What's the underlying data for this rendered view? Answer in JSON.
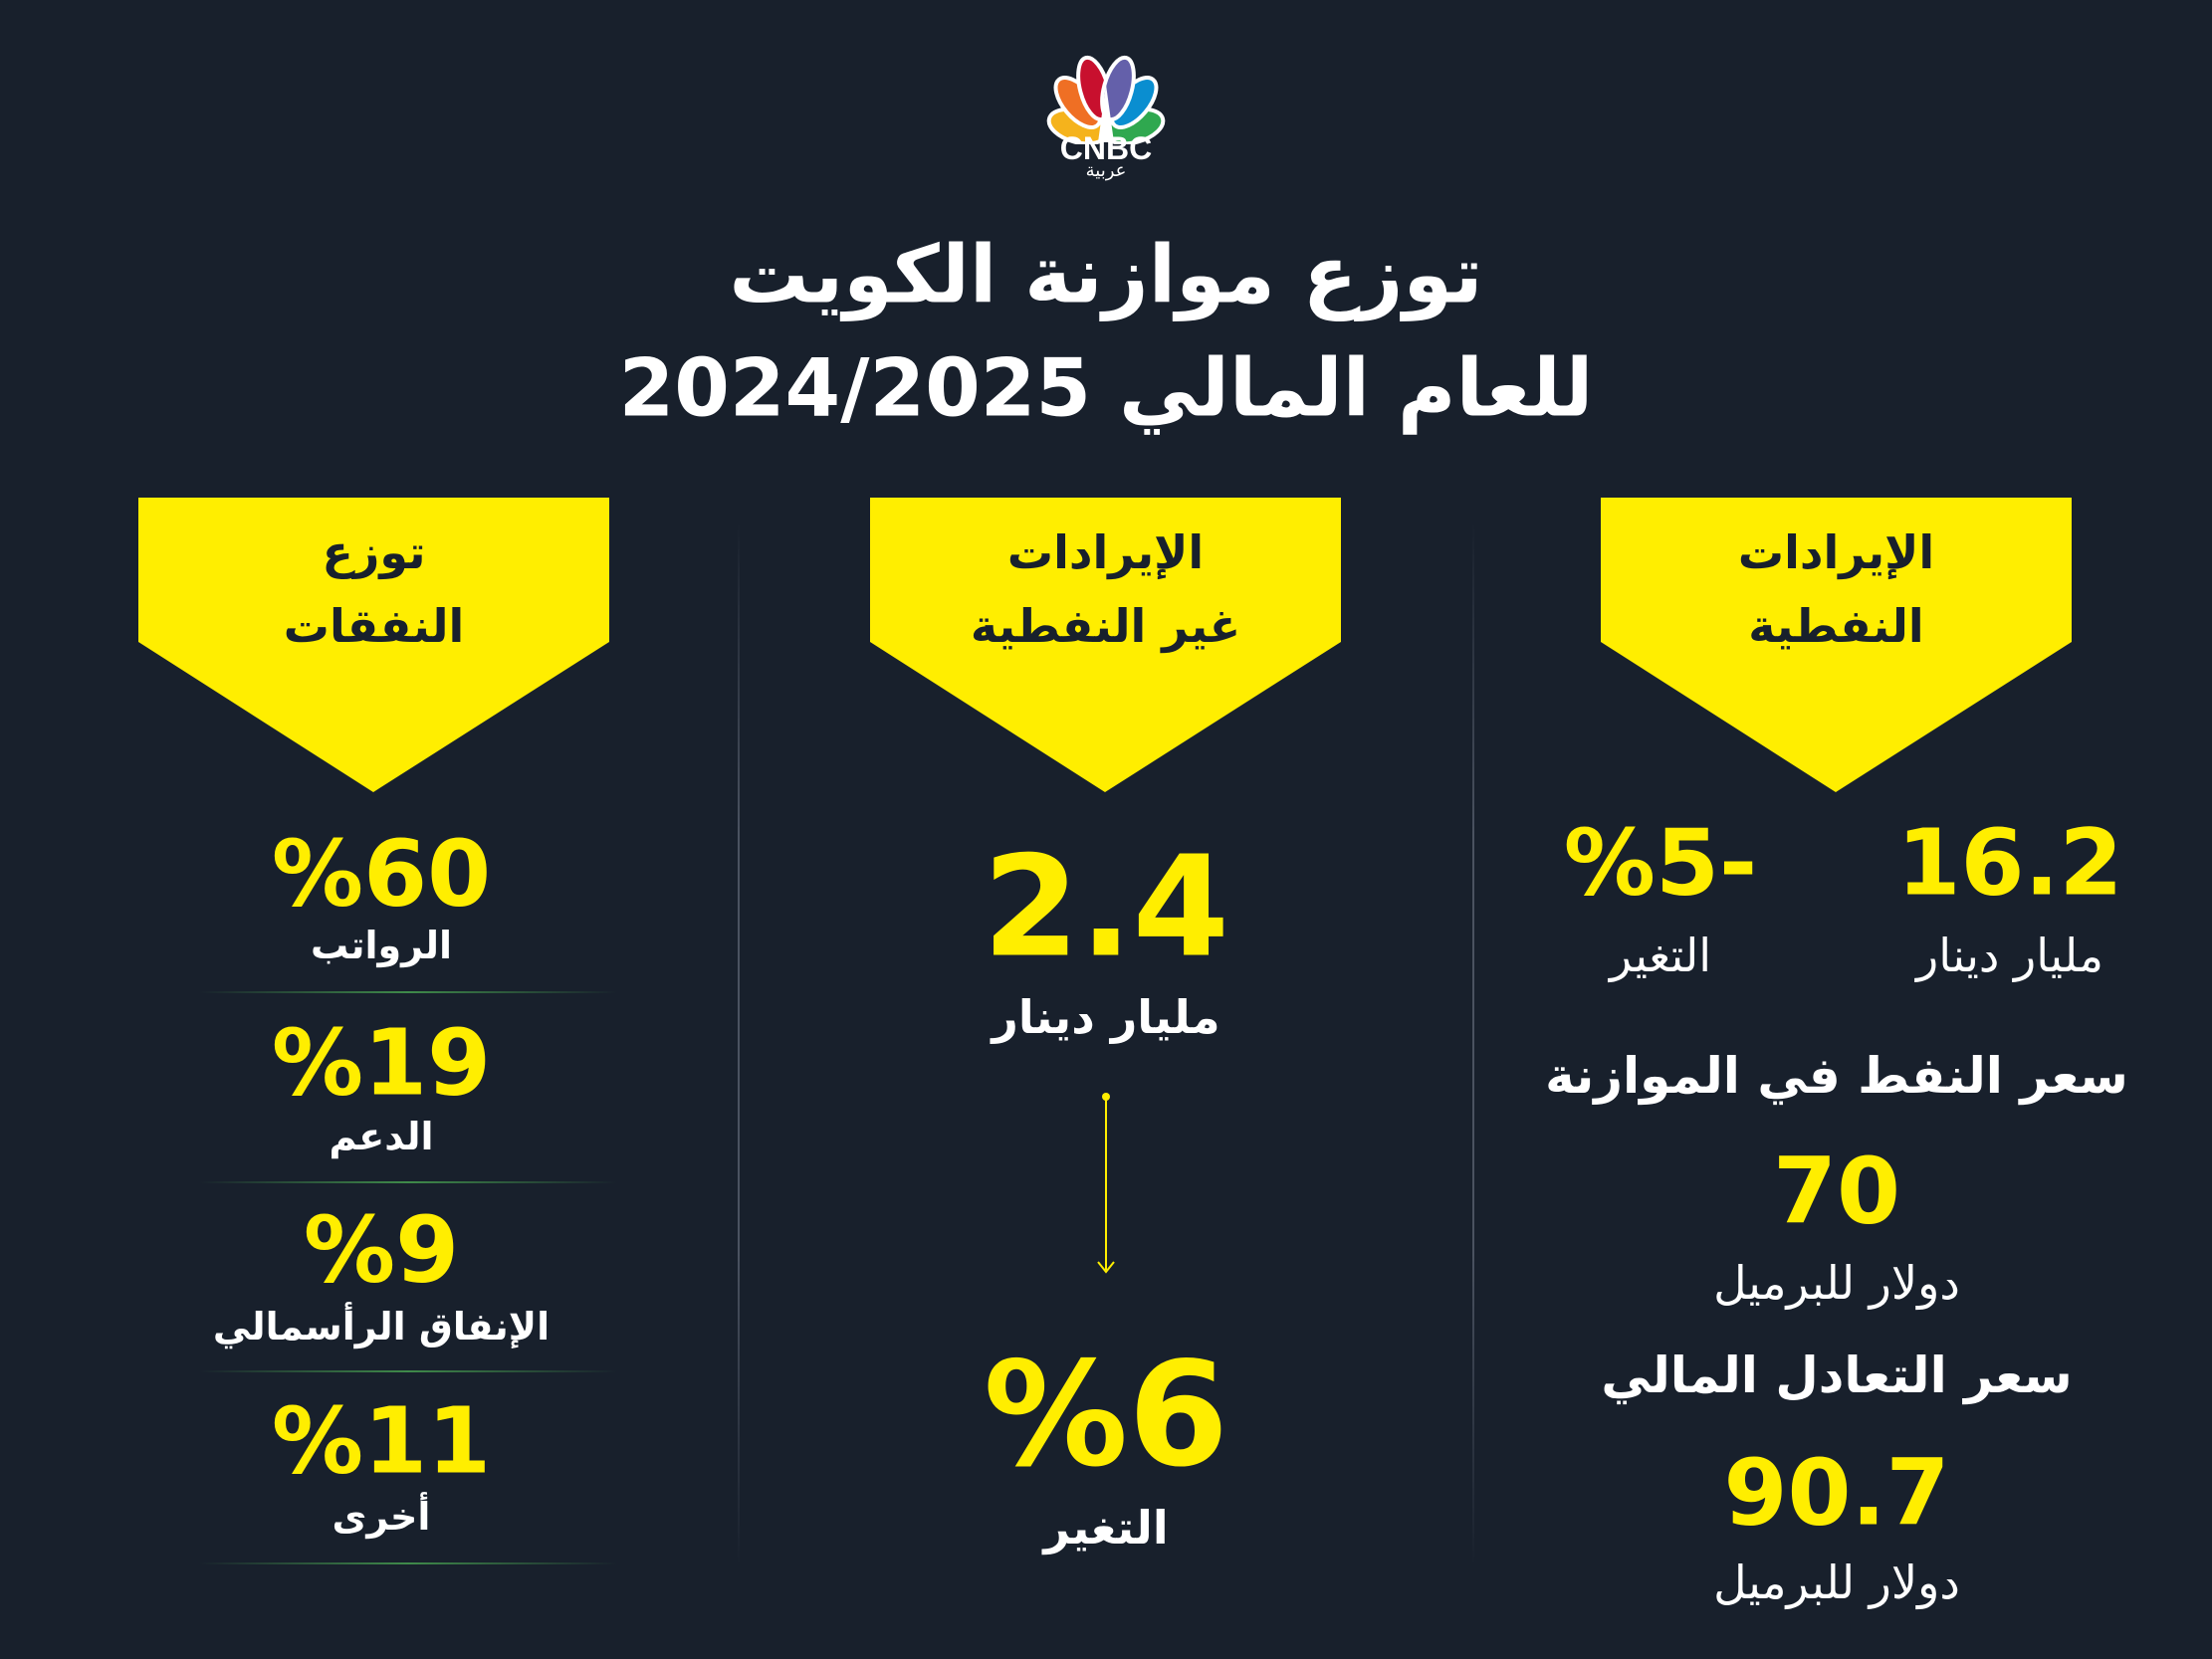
{
  "logo": {
    "text": "CNBC",
    "subtitle": "عربية",
    "colors": [
      "#f5b31c",
      "#ef6f24",
      "#c8102e",
      "#6460aa",
      "#0a8ed0",
      "#2fa84f"
    ]
  },
  "title": {
    "line1": "توزع موازنة الكويت",
    "line2": "للعام المالي 2024/2025"
  },
  "colors": {
    "background": "#18202c",
    "accent": "#ffee00"
  },
  "columns": {
    "expenses": {
      "banner": [
        "توزع",
        "النفقات"
      ],
      "items": [
        {
          "value": "%60",
          "label": "الرواتب"
        },
        {
          "value": "%19",
          "label": "الدعم"
        },
        {
          "value": "%9",
          "label": "الإنفاق الرأسمالي"
        },
        {
          "value": "%11",
          "label": "أخرى"
        }
      ]
    },
    "non_oil": {
      "banner": [
        "الإيرادات",
        "غير النفطية"
      ],
      "value": "2.4",
      "unit": "مليار دينار",
      "change": "%6",
      "change_label": "التغير"
    },
    "oil": {
      "banner": [
        "الإيرادات",
        "النفطية"
      ],
      "value": "16.2",
      "unit": "مليار دينار",
      "change": "%5-",
      "change_label": "التغير",
      "oil_price_title": "سعر النفط في الموازنة",
      "oil_price": "70",
      "oil_price_unit": "دولار للبرميل",
      "breakeven_title": "سعر التعادل المالي",
      "breakeven": "90.7",
      "breakeven_unit": "دولار للبرميل"
    }
  }
}
